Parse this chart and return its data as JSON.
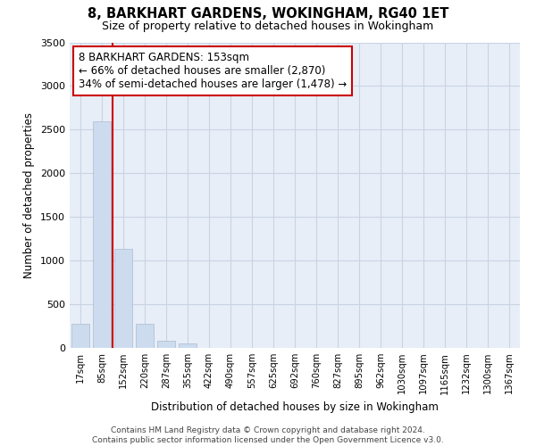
{
  "title": "8, BARKHART GARDENS, WOKINGHAM, RG40 1ET",
  "subtitle": "Size of property relative to detached houses in Wokingham",
  "xlabel": "Distribution of detached houses by size in Wokingham",
  "ylabel": "Number of detached properties",
  "bar_labels": [
    "17sqm",
    "85sqm",
    "152sqm",
    "220sqm",
    "287sqm",
    "355sqm",
    "422sqm",
    "490sqm",
    "557sqm",
    "625sqm",
    "692sqm",
    "760sqm",
    "827sqm",
    "895sqm",
    "962sqm",
    "1030sqm",
    "1097sqm",
    "1165sqm",
    "1232sqm",
    "1300sqm",
    "1367sqm"
  ],
  "bar_values": [
    280,
    2600,
    1130,
    280,
    80,
    50,
    5,
    5,
    5,
    5,
    5,
    5,
    5,
    5,
    5,
    5,
    5,
    5,
    5,
    5,
    5
  ],
  "bar_color": "#ccdcee",
  "bar_edge_color": "#aabbd0",
  "property_line_label": "8 BARKHART GARDENS: 153sqm",
  "annotation_line1": "← 66% of detached houses are smaller (2,870)",
  "annotation_line2": "34% of semi-detached houses are larger (1,478) →",
  "annotation_box_color": "#ffffff",
  "annotation_box_edge_color": "#cc0000",
  "line_color": "#cc0000",
  "ylim": [
    0,
    3500
  ],
  "yticks": [
    0,
    500,
    1000,
    1500,
    2000,
    2500,
    3000,
    3500
  ],
  "grid_color": "#c8d4e4",
  "bg_color": "#e8eef8",
  "footer_line1": "Contains HM Land Registry data © Crown copyright and database right 2024.",
  "footer_line2": "Contains public sector information licensed under the Open Government Licence v3.0."
}
